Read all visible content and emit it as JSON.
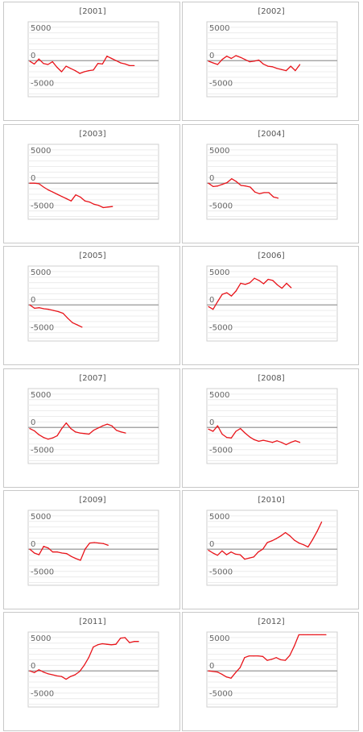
{
  "chart_data": [
    {
      "type": "line",
      "title": "[2001]",
      "ylim": [
        -6500,
        7000
      ],
      "yticks": [
        5000,
        0,
        -5000
      ],
      "series": [
        {
          "values": [
            -100,
            -600,
            300,
            -500,
            -700,
            -200,
            -1200,
            -2000,
            -1000,
            -1400,
            -1800,
            -2300,
            -2000,
            -1800,
            -1700,
            -500,
            -600,
            800,
            400,
            0,
            -400,
            -600,
            -900,
            -900
          ]
        }
      ]
    },
    {
      "type": "line",
      "title": "[2002]",
      "ylim": [
        -6500,
        7000
      ],
      "yticks": [
        5000,
        0,
        -5000
      ],
      "series": [
        {
          "values": [
            -100,
            -400,
            -700,
            200,
            800,
            400,
            900,
            600,
            200,
            -200,
            -100,
            100,
            -600,
            -1000,
            -1100,
            -1400,
            -1600,
            -1800,
            -1000,
            -1800,
            -700
          ]
        }
      ]
    },
    {
      "type": "line",
      "title": "[2003]",
      "ylim": [
        -6500,
        7000
      ],
      "yticks": [
        5000,
        0,
        -5000
      ],
      "series": [
        {
          "values": [
            0,
            0,
            -100,
            -700,
            -1200,
            -1600,
            -2000,
            -2400,
            -2800,
            -3200,
            -2100,
            -2500,
            -3200,
            -3400,
            -3800,
            -4000,
            -4400,
            -4300,
            -4200
          ]
        }
      ]
    },
    {
      "type": "line",
      "title": "[2004]",
      "ylim": [
        -6500,
        7000
      ],
      "yticks": [
        5000,
        0,
        -5000
      ],
      "series": [
        {
          "values": [
            0,
            -600,
            -500,
            -200,
            100,
            800,
            300,
            -400,
            -500,
            -700,
            -1600,
            -1900,
            -1700,
            -1700,
            -2500,
            -2700
          ]
        }
      ]
    },
    {
      "type": "line",
      "title": "[2005]",
      "ylim": [
        -6500,
        7000
      ],
      "yticks": [
        5000,
        0,
        -5000
      ],
      "series": [
        {
          "values": [
            0,
            -600,
            -500,
            -700,
            -800,
            -1000,
            -1200,
            -1500,
            -2400,
            -3200,
            -3600,
            -4000
          ]
        }
      ]
    },
    {
      "type": "line",
      "title": "[2006]",
      "ylim": [
        -6500,
        7000
      ],
      "yticks": [
        5000,
        0,
        -5000
      ],
      "series": [
        {
          "values": [
            -300,
            -800,
            600,
            1900,
            2200,
            1600,
            2500,
            3900,
            3700,
            4000,
            4800,
            4400,
            3800,
            4600,
            4400,
            3600,
            3000,
            3900,
            3100
          ]
        }
      ]
    },
    {
      "type": "line",
      "title": "[2007]",
      "ylim": [
        -6500,
        7000
      ],
      "yticks": [
        5000,
        0,
        -5000
      ],
      "series": [
        {
          "values": [
            -200,
            -600,
            -1300,
            -1800,
            -2100,
            -1900,
            -1500,
            -200,
            800,
            -200,
            -800,
            -1000,
            -1100,
            -1200,
            -500,
            -100,
            300,
            600,
            300,
            -500,
            -800,
            -1000
          ]
        }
      ]
    },
    {
      "type": "line",
      "title": "[2008]",
      "ylim": [
        -6500,
        7000
      ],
      "yticks": [
        5000,
        0,
        -5000
      ],
      "series": [
        {
          "values": [
            -300,
            -700,
            300,
            -1200,
            -1800,
            -1900,
            -700,
            -200,
            -1000,
            -1700,
            -2200,
            -2500,
            -2300,
            -2500,
            -2700,
            -2400,
            -2700,
            -3100,
            -2700,
            -2400,
            -2700
          ]
        }
      ]
    },
    {
      "type": "line",
      "title": "[2009]",
      "ylim": [
        -6500,
        7000
      ],
      "yticks": [
        5000,
        0,
        -5000
      ],
      "series": [
        {
          "values": [
            0,
            -700,
            -1000,
            500,
            200,
            -500,
            -500,
            -700,
            -800,
            -1300,
            -1700,
            -2000,
            0,
            1100,
            1200,
            1100,
            1000,
            700
          ]
        }
      ]
    },
    {
      "type": "line",
      "title": "[2010]",
      "ylim": [
        -6500,
        7000
      ],
      "yticks": [
        5000,
        0,
        -5000
      ],
      "series": [
        {
          "values": [
            -200,
            -700,
            -1100,
            -300,
            -1000,
            -500,
            -900,
            -1000,
            -1800,
            -1600,
            -1400,
            -500,
            0,
            1200,
            1500,
            1900,
            2400,
            3000,
            2400,
            1600,
            1100,
            800,
            400,
            1700,
            3200,
            4900
          ]
        }
      ]
    },
    {
      "type": "line",
      "title": "[2011]",
      "ylim": [
        -6500,
        7000
      ],
      "yticks": [
        5000,
        0,
        -5000
      ],
      "series": [
        {
          "values": [
            0,
            -300,
            200,
            -200,
            -500,
            -700,
            -900,
            -1000,
            -1500,
            -1000,
            -700,
            -100,
            1000,
            2400,
            4300,
            4700,
            4900,
            4800,
            4700,
            4800,
            5900,
            6000,
            5100,
            5300,
            5300
          ]
        }
      ]
    },
    {
      "type": "line",
      "title": "[2012]",
      "ylim": [
        -6500,
        7000
      ],
      "yticks": [
        5000,
        0,
        -5000
      ],
      "series": [
        {
          "values": [
            0,
            -100,
            -200,
            -600,
            -1100,
            -1300,
            -300,
            600,
            2400,
            2700,
            2700,
            2700,
            2600,
            1900,
            2100,
            2400,
            2000,
            1900,
            2800,
            4500,
            6500,
            6500,
            6500,
            6500,
            6500,
            6500,
            6500
          ]
        }
      ]
    }
  ]
}
